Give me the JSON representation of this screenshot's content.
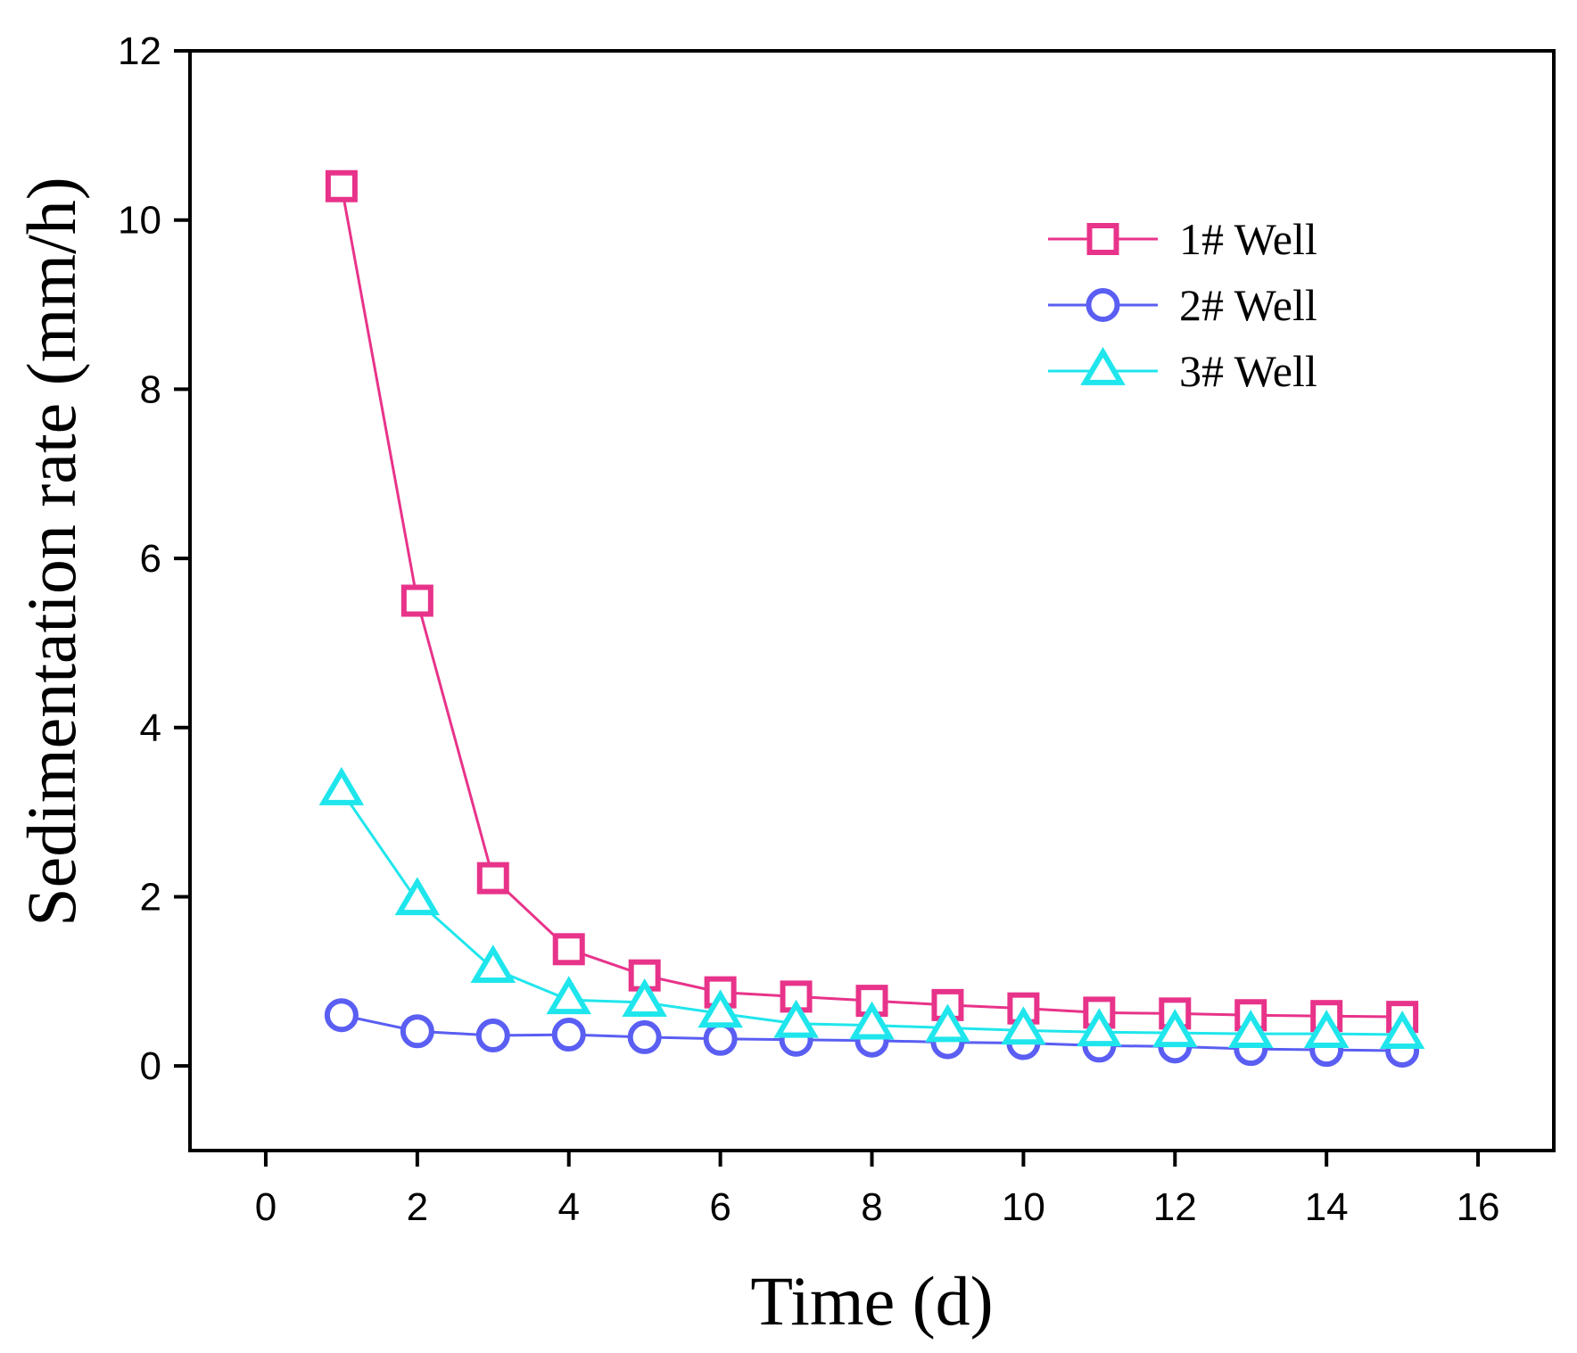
{
  "chart_data": {
    "type": "line",
    "title": "",
    "xlabel": "Time (d)",
    "ylabel": "Sedimentation rate (mm/h)",
    "xlim": [
      -1,
      17
    ],
    "ylim": [
      -1,
      12
    ],
    "xticks": [
      0,
      2,
      4,
      6,
      8,
      10,
      12,
      14,
      16
    ],
    "yticks": [
      0,
      2,
      4,
      6,
      8,
      10,
      12
    ],
    "xtick_labels": [
      "0",
      "2",
      "4",
      "6",
      "8",
      "10",
      "12",
      "14",
      "16"
    ],
    "ytick_labels": [
      "0",
      "2",
      "4",
      "6",
      "8",
      "10",
      "12"
    ],
    "x": [
      1,
      2,
      3,
      4,
      5,
      6,
      7,
      8,
      9,
      10,
      11,
      12,
      13,
      14,
      15
    ],
    "legend_position": "top-right",
    "series": [
      {
        "name": "1# Well",
        "marker": "square",
        "color": "#e8338a",
        "values": [
          10.4,
          5.5,
          2.22,
          1.38,
          1.07,
          0.87,
          0.82,
          0.77,
          0.72,
          0.68,
          0.63,
          0.62,
          0.6,
          0.59,
          0.58
        ]
      },
      {
        "name": "2# Well",
        "marker": "circle",
        "color": "#5a5ef2",
        "values": [
          0.6,
          0.41,
          0.36,
          0.37,
          0.34,
          0.32,
          0.31,
          0.3,
          0.28,
          0.27,
          0.24,
          0.23,
          0.2,
          0.19,
          0.18
        ]
      },
      {
        "name": "3# Well",
        "marker": "triangle",
        "color": "#1fe6ec",
        "values": [
          3.25,
          1.95,
          1.15,
          0.78,
          0.75,
          0.62,
          0.5,
          0.48,
          0.45,
          0.42,
          0.4,
          0.39,
          0.38,
          0.38,
          0.37
        ]
      }
    ]
  }
}
